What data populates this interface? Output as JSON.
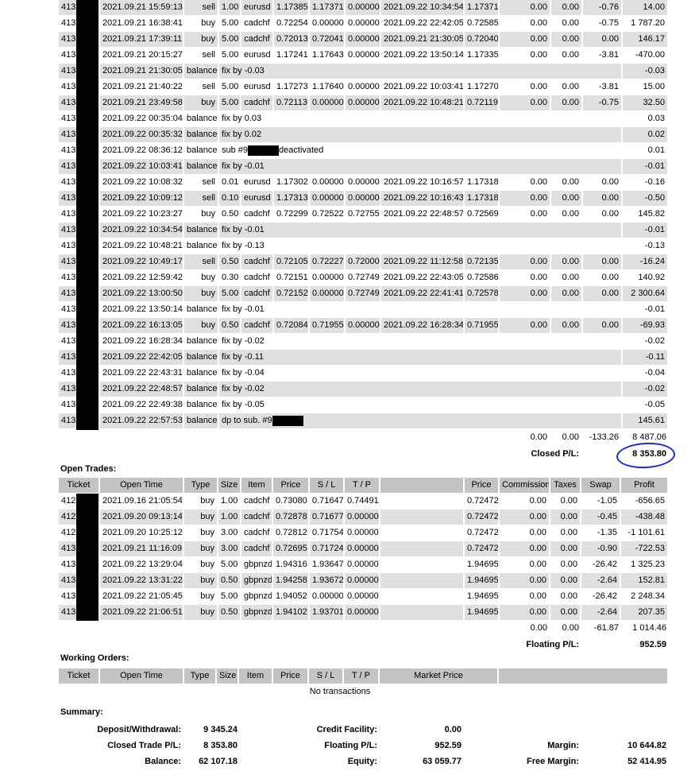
{
  "closed_trades": {
    "rows": [
      {
        "ticket": "4132",
        "open_time": "2021.09.21 15:59:13",
        "type": "sell",
        "size": "1.00",
        "item": "eurusd",
        "price": "1.17385",
        "sl": "1.17371",
        "tp": "0.00000",
        "close_time": "2021.09.22 10:34:54",
        "close_price": "1.17371",
        "commission": "0.00",
        "taxes": "0.00",
        "swap": "-0.76",
        "profit": "14.00"
      },
      {
        "ticket": "4133",
        "open_time": "2021.09.21 16:38:41",
        "type": "buy",
        "size": "5.00",
        "item": "cadchf",
        "price": "0.72254",
        "sl": "0.00000",
        "tp": "0.00000",
        "close_time": "2021.09.22 22:42:05",
        "close_price": "0.72585",
        "commission": "0.00",
        "taxes": "0.00",
        "swap": "-0.75",
        "profit": "1 787.20"
      },
      {
        "ticket": "4133",
        "open_time": "2021.09.21 17:39:11",
        "type": "buy",
        "size": "5.00",
        "item": "cadchf",
        "price": "0.72013",
        "sl": "0.72041",
        "tp": "0.00000",
        "close_time": "2021.09.21 21:30:05",
        "close_price": "0.72040",
        "commission": "0.00",
        "taxes": "0.00",
        "swap": "0.00",
        "profit": "146.17"
      },
      {
        "ticket": "4134",
        "open_time": "2021.09.21 20:15:27",
        "type": "sell",
        "size": "5.00",
        "item": "eurusd",
        "price": "1.17241",
        "sl": "1.17643",
        "tp": "0.00000",
        "close_time": "2021.09.22 13:50:14",
        "close_price": "1.17335",
        "commission": "0.00",
        "taxes": "0.00",
        "swap": "-3.81",
        "profit": "-470.00"
      },
      {
        "ticket": "4134",
        "open_time": "2021.09.21 21:30:05",
        "type": "balance",
        "desc": [
          "fix by -0.03"
        ],
        "profit": "-0.03"
      },
      {
        "ticket": "4134",
        "open_time": "2021.09.21 21:40:22",
        "type": "sell",
        "size": "5.00",
        "item": "eurusd",
        "price": "1.17273",
        "sl": "1.17640",
        "tp": "0.00000",
        "close_time": "2021.09.22 10:03:41",
        "close_price": "1.17270",
        "commission": "0.00",
        "taxes": "0.00",
        "swap": "-3.81",
        "profit": "15.00"
      },
      {
        "ticket": "4134",
        "open_time": "2021.09.21 23:49:58",
        "type": "buy",
        "size": "5.00",
        "item": "cadchf",
        "price": "0.72113",
        "sl": "0.00000",
        "tp": "0.00000",
        "close_time": "2021.09.22 10:48:21",
        "close_price": "0.72119",
        "commission": "0.00",
        "taxes": "0.00",
        "swap": "-0.75",
        "profit": "32.50"
      },
      {
        "ticket": "4135",
        "open_time": "2021.09.22 00:35:04",
        "type": "balance",
        "desc": [
          "fix by 0.03"
        ],
        "profit": "0.03"
      },
      {
        "ticket": "4135",
        "open_time": "2021.09.22 00:35:32",
        "type": "balance",
        "desc": [
          "fix by 0.02"
        ],
        "profit": "0.02"
      },
      {
        "ticket": "4135",
        "open_time": "2021.09.22 08:36:12",
        "type": "balance",
        "desc": [
          "sub #9",
          "deactivated"
        ],
        "profit": "0.01"
      },
      {
        "ticket": "4135",
        "open_time": "2021.09.22 10:03:41",
        "type": "balance",
        "desc": [
          "fix by -0.01"
        ],
        "profit": "-0.01"
      },
      {
        "ticket": "4135",
        "open_time": "2021.09.22 10:08:32",
        "type": "sell",
        "size": "0.01",
        "item": "eurusd",
        "price": "1.17302",
        "sl": "0.00000",
        "tp": "0.00000",
        "close_time": "2021.09.22 10:16:57",
        "close_price": "1.17318",
        "commission": "0.00",
        "taxes": "0.00",
        "swap": "0.00",
        "profit": "-0.16"
      },
      {
        "ticket": "4135",
        "open_time": "2021.09.22 10:09:12",
        "type": "sell",
        "size": "0.10",
        "item": "eurusd",
        "price": "1.17313",
        "sl": "0.00000",
        "tp": "0.00000",
        "close_time": "2021.09.22 10:16:43",
        "close_price": "1.17318",
        "commission": "0.00",
        "taxes": "0.00",
        "swap": "0.00",
        "profit": "-0.50"
      },
      {
        "ticket": "4135",
        "open_time": "2021.09.22 10:23:27",
        "type": "buy",
        "size": "0.50",
        "item": "cadchf",
        "price": "0.72299",
        "sl": "0.72522",
        "tp": "0.72755",
        "close_time": "2021.09.22 22:48:57",
        "close_price": "0.72569",
        "commission": "0.00",
        "taxes": "0.00",
        "swap": "0.00",
        "profit": "145.82"
      },
      {
        "ticket": "4135",
        "open_time": "2021.09.22 10:34:54",
        "type": "balance",
        "desc": [
          "fix by -0.01"
        ],
        "profit": "-0.01"
      },
      {
        "ticket": "4135",
        "open_time": "2021.09.22 10:48:21",
        "type": "balance",
        "desc": [
          "fix by -0.13"
        ],
        "profit": "-0.13"
      },
      {
        "ticket": "4135",
        "open_time": "2021.09.22 10:49:17",
        "type": "sell",
        "size": "0.50",
        "item": "cadchf",
        "price": "0.72105",
        "sl": "0.72227",
        "tp": "0.72000",
        "close_time": "2021.09.22 11:12:58",
        "close_price": "0.72135",
        "commission": "0.00",
        "taxes": "0.00",
        "swap": "0.00",
        "profit": "-16.24"
      },
      {
        "ticket": "4136",
        "open_time": "2021.09.22 12:59:42",
        "type": "buy",
        "size": "0.30",
        "item": "cadchf",
        "price": "0.72151",
        "sl": "0.00000",
        "tp": "0.72749",
        "close_time": "2021.09.22 22:43:05",
        "close_price": "0.72586",
        "commission": "0.00",
        "taxes": "0.00",
        "swap": "0.00",
        "profit": "140.92"
      },
      {
        "ticket": "4136",
        "open_time": "2021.09.22 13:00:50",
        "type": "buy",
        "size": "5.00",
        "item": "cadchf",
        "price": "0.72152",
        "sl": "0.00000",
        "tp": "0.72749",
        "close_time": "2021.09.22 22:41:41",
        "close_price": "0.72578",
        "commission": "0.00",
        "taxes": "0.00",
        "swap": "0.00",
        "profit": "2 300.64"
      },
      {
        "ticket": "4136",
        "open_time": "2021.09.22 13:50:14",
        "type": "balance",
        "desc": [
          "fix by -0.01"
        ],
        "profit": "-0.01"
      },
      {
        "ticket": "4136",
        "open_time": "2021.09.22 16:13:05",
        "type": "buy",
        "size": "0.50",
        "item": "cadchf",
        "price": "0.72084",
        "sl": "0.71955",
        "tp": "0.00000",
        "close_time": "2021.09.22 16:28:34",
        "close_price": "0.71955",
        "commission": "0.00",
        "taxes": "0.00",
        "swap": "0.00",
        "profit": "-69.93"
      },
      {
        "ticket": "4136",
        "open_time": "2021.09.22 16:28:34",
        "type": "balance",
        "desc": [
          "fix by -0.02"
        ],
        "profit": "-0.02"
      },
      {
        "ticket": "4138",
        "open_time": "2021.09.22 22:42:05",
        "type": "balance",
        "desc": [
          "fix by -0.11"
        ],
        "profit": "-0.11"
      },
      {
        "ticket": "4138",
        "open_time": "2021.09.22 22:43:31",
        "type": "balance",
        "desc": [
          "fix by -0.04"
        ],
        "profit": "-0.04"
      },
      {
        "ticket": "4138",
        "open_time": "2021.09.22 22:48:57",
        "type": "balance",
        "desc": [
          "fix by -0.02"
        ],
        "profit": "-0.02"
      },
      {
        "ticket": "4138",
        "open_time": "2021.09.22 22:49:38",
        "type": "balance",
        "desc": [
          "fix by -0.05"
        ],
        "profit": "-0.05"
      },
      {
        "ticket": "4138",
        "open_time": "2021.09.22 22:57:53",
        "type": "balance",
        "desc": [
          "dp to sub. #9",
          ""
        ],
        "profit": "145.61"
      }
    ],
    "totals": {
      "commission": "0.00",
      "taxes": "0.00",
      "swap": "-133.26",
      "profit": "8 487.06"
    },
    "closed_pl_label": "Closed P/L:",
    "closed_pl_value": "8 353.80",
    "annotation_color": "#1a2bd6"
  },
  "open_trades": {
    "title": "Open Trades:",
    "headers": [
      "Ticket",
      "Open Time",
      "Type",
      "Size",
      "Item",
      "Price",
      "S / L",
      "T / P",
      "",
      "Price",
      "Commission",
      "Taxes",
      "Swap",
      "Profit"
    ],
    "rows": [
      {
        "ticket": "412",
        "open_time": "2021.09.16 21:05:54",
        "type": "buy",
        "size": "1.00",
        "item": "cadchf",
        "price": "0.73080",
        "sl": "0.71647",
        "tp": "0.74491",
        "market_price": "0.72472",
        "commission": "0.00",
        "taxes": "0.00",
        "swap": "-1.05",
        "profit": "-656.65"
      },
      {
        "ticket": "412",
        "open_time": "2021.09.20 09:13:14",
        "type": "buy",
        "size": "1.00",
        "item": "cadchf",
        "price": "0.72878",
        "sl": "0.71677",
        "tp": "0.00000",
        "market_price": "0.72472",
        "commission": "0.00",
        "taxes": "0.00",
        "swap": "-0.45",
        "profit": "-438.48"
      },
      {
        "ticket": "412",
        "open_time": "2021.09.20 10:25:12",
        "type": "buy",
        "size": "3.00",
        "item": "cadchf",
        "price": "0.72812",
        "sl": "0.71754",
        "tp": "0.00000",
        "market_price": "0.72472",
        "commission": "0.00",
        "taxes": "0.00",
        "swap": "-1.35",
        "profit": "-1 101.61"
      },
      {
        "ticket": "413",
        "open_time": "2021.09.21 11:16:09",
        "type": "buy",
        "size": "3.00",
        "item": "cadchf",
        "price": "0.72695",
        "sl": "0.71724",
        "tp": "0.00000",
        "market_price": "0.72472",
        "commission": "0.00",
        "taxes": "0.00",
        "swap": "-0.90",
        "profit": "-722.53"
      },
      {
        "ticket": "413",
        "open_time": "2021.09.22 13:29:04",
        "type": "buy",
        "size": "5.00",
        "item": "gbpnzd",
        "price": "1.94316",
        "sl": "1.93647",
        "tp": "0.00000",
        "market_price": "1.94695",
        "commission": "0.00",
        "taxes": "0.00",
        "swap": "-26.42",
        "profit": "1 325.23"
      },
      {
        "ticket": "413",
        "open_time": "2021.09.22 13:31:22",
        "type": "buy",
        "size": "0.50",
        "item": "gbpnzd",
        "price": "1.94258",
        "sl": "1.93672",
        "tp": "0.00000",
        "market_price": "1.94695",
        "commission": "0.00",
        "taxes": "0.00",
        "swap": "-2.64",
        "profit": "152.81"
      },
      {
        "ticket": "413",
        "open_time": "2021.09.22 21:05:45",
        "type": "buy",
        "size": "5.00",
        "item": "gbpnzd",
        "price": "1.94052",
        "sl": "0.00000",
        "tp": "0.00000",
        "market_price": "1.94695",
        "commission": "0.00",
        "taxes": "0.00",
        "swap": "-26.42",
        "profit": "2 248.34"
      },
      {
        "ticket": "413",
        "open_time": "2021.09.22 21:06:51",
        "type": "buy",
        "size": "0.50",
        "item": "gbpnzd",
        "price": "1.94102",
        "sl": "1.93701",
        "tp": "0.00000",
        "market_price": "1.94695",
        "commission": "0.00",
        "taxes": "0.00",
        "swap": "-2.64",
        "profit": "207.35"
      }
    ],
    "totals": {
      "commission": "0.00",
      "taxes": "0.00",
      "swap": "-61.87",
      "profit": "1 014.46"
    },
    "floating_pl_label": "Floating P/L:",
    "floating_pl_value": "952.59"
  },
  "working_orders": {
    "title": "Working Orders:",
    "headers": [
      "Ticket",
      "Open Time",
      "Type",
      "Size",
      "Item",
      "Price",
      "S / L",
      "T / P",
      "Market Price",
      ""
    ],
    "empty_text": "No transactions"
  },
  "summary": {
    "title": "Summary:",
    "deposit_label": "Deposit/Withdrawal:",
    "deposit_value": "9 345.24",
    "closed_label": "Closed Trade P/L:",
    "closed_value": "8 353.80",
    "balance_label": "Balance:",
    "balance_value": "62 107.18",
    "credit_label": "Credit Facility:",
    "credit_value": "0.00",
    "floating_label": "Floating P/L:",
    "floating_value": "952.59",
    "equity_label": "Equity:",
    "equity_value": "63 059.77",
    "margin_label": "Margin:",
    "margin_value": "10 644.82",
    "free_margin_label": "Free Margin:",
    "free_margin_value": "52 414.95"
  }
}
